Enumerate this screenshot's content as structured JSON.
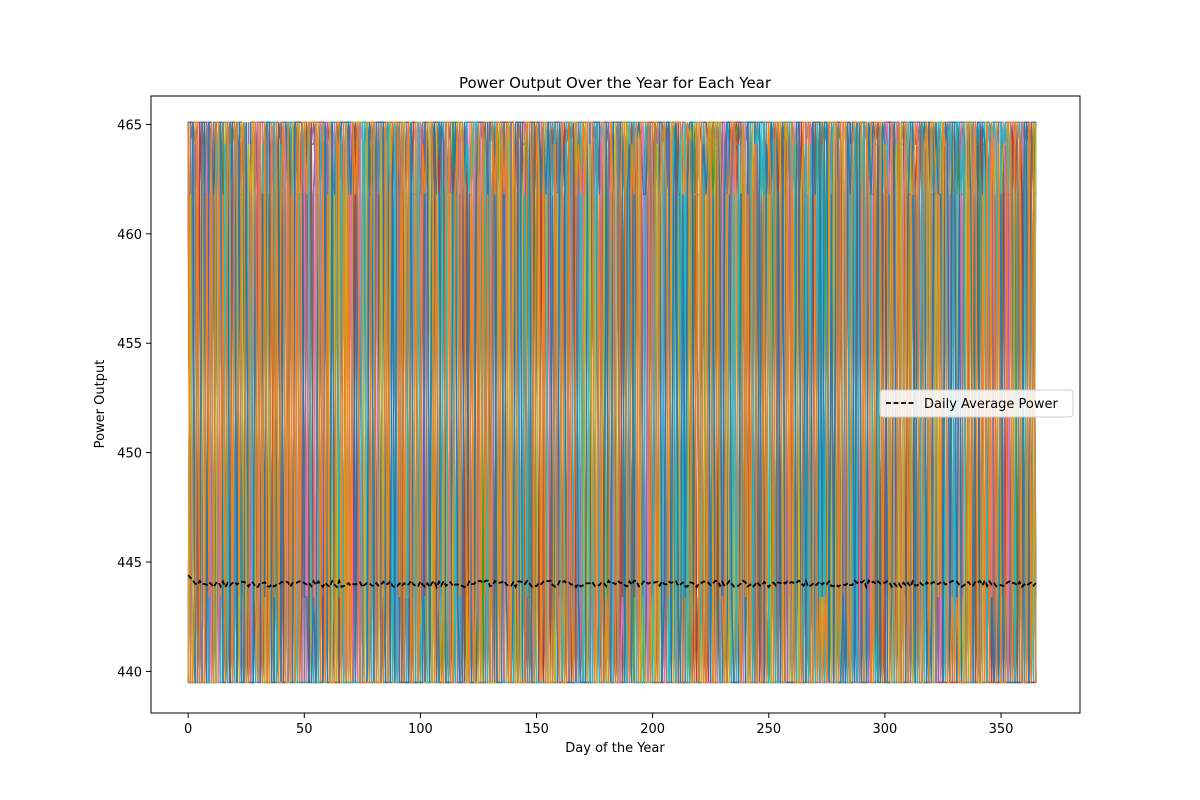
{
  "chart_data": {
    "type": "line",
    "title": "Power Output Over the Year for Each Year",
    "xlabel": "Day of the Year",
    "ylabel": "Power Output",
    "xlim": [
      -16,
      384
    ],
    "ylim": [
      438.1,
      466.3
    ],
    "x_ticks": [
      0,
      50,
      100,
      150,
      200,
      250,
      300,
      350
    ],
    "y_ticks": [
      440,
      445,
      450,
      455,
      460,
      465
    ],
    "x_tick_labels": [
      "0",
      "50",
      "100",
      "150",
      "200",
      "250",
      "300",
      "350"
    ],
    "y_tick_labels": [
      "440",
      "445",
      "450",
      "455",
      "460",
      "465"
    ],
    "grid": false,
    "legend": {
      "placement": "center-right",
      "entries": [
        "Daily Average Power"
      ]
    },
    "daily_average": {
      "name": "Daily Average Power",
      "color": "#000000",
      "style": "dashed",
      "x_range": [
        0,
        365
      ],
      "y_start": 444.4,
      "y_mean": 444.0,
      "y_spread": 0.25
    },
    "yearly_series": {
      "description_levels": [
        439.5,
        443.4,
        461.8,
        464.1,
        465.1
      ],
      "x_range": [
        0,
        365
      ],
      "palette": [
        "#1f77b4",
        "#ff7f0e",
        "#2ca02c",
        "#d62728",
        "#9467bd",
        "#8c564b",
        "#e377c2",
        "#7f7f7f",
        "#bcbd22",
        "#17becf"
      ]
    }
  }
}
